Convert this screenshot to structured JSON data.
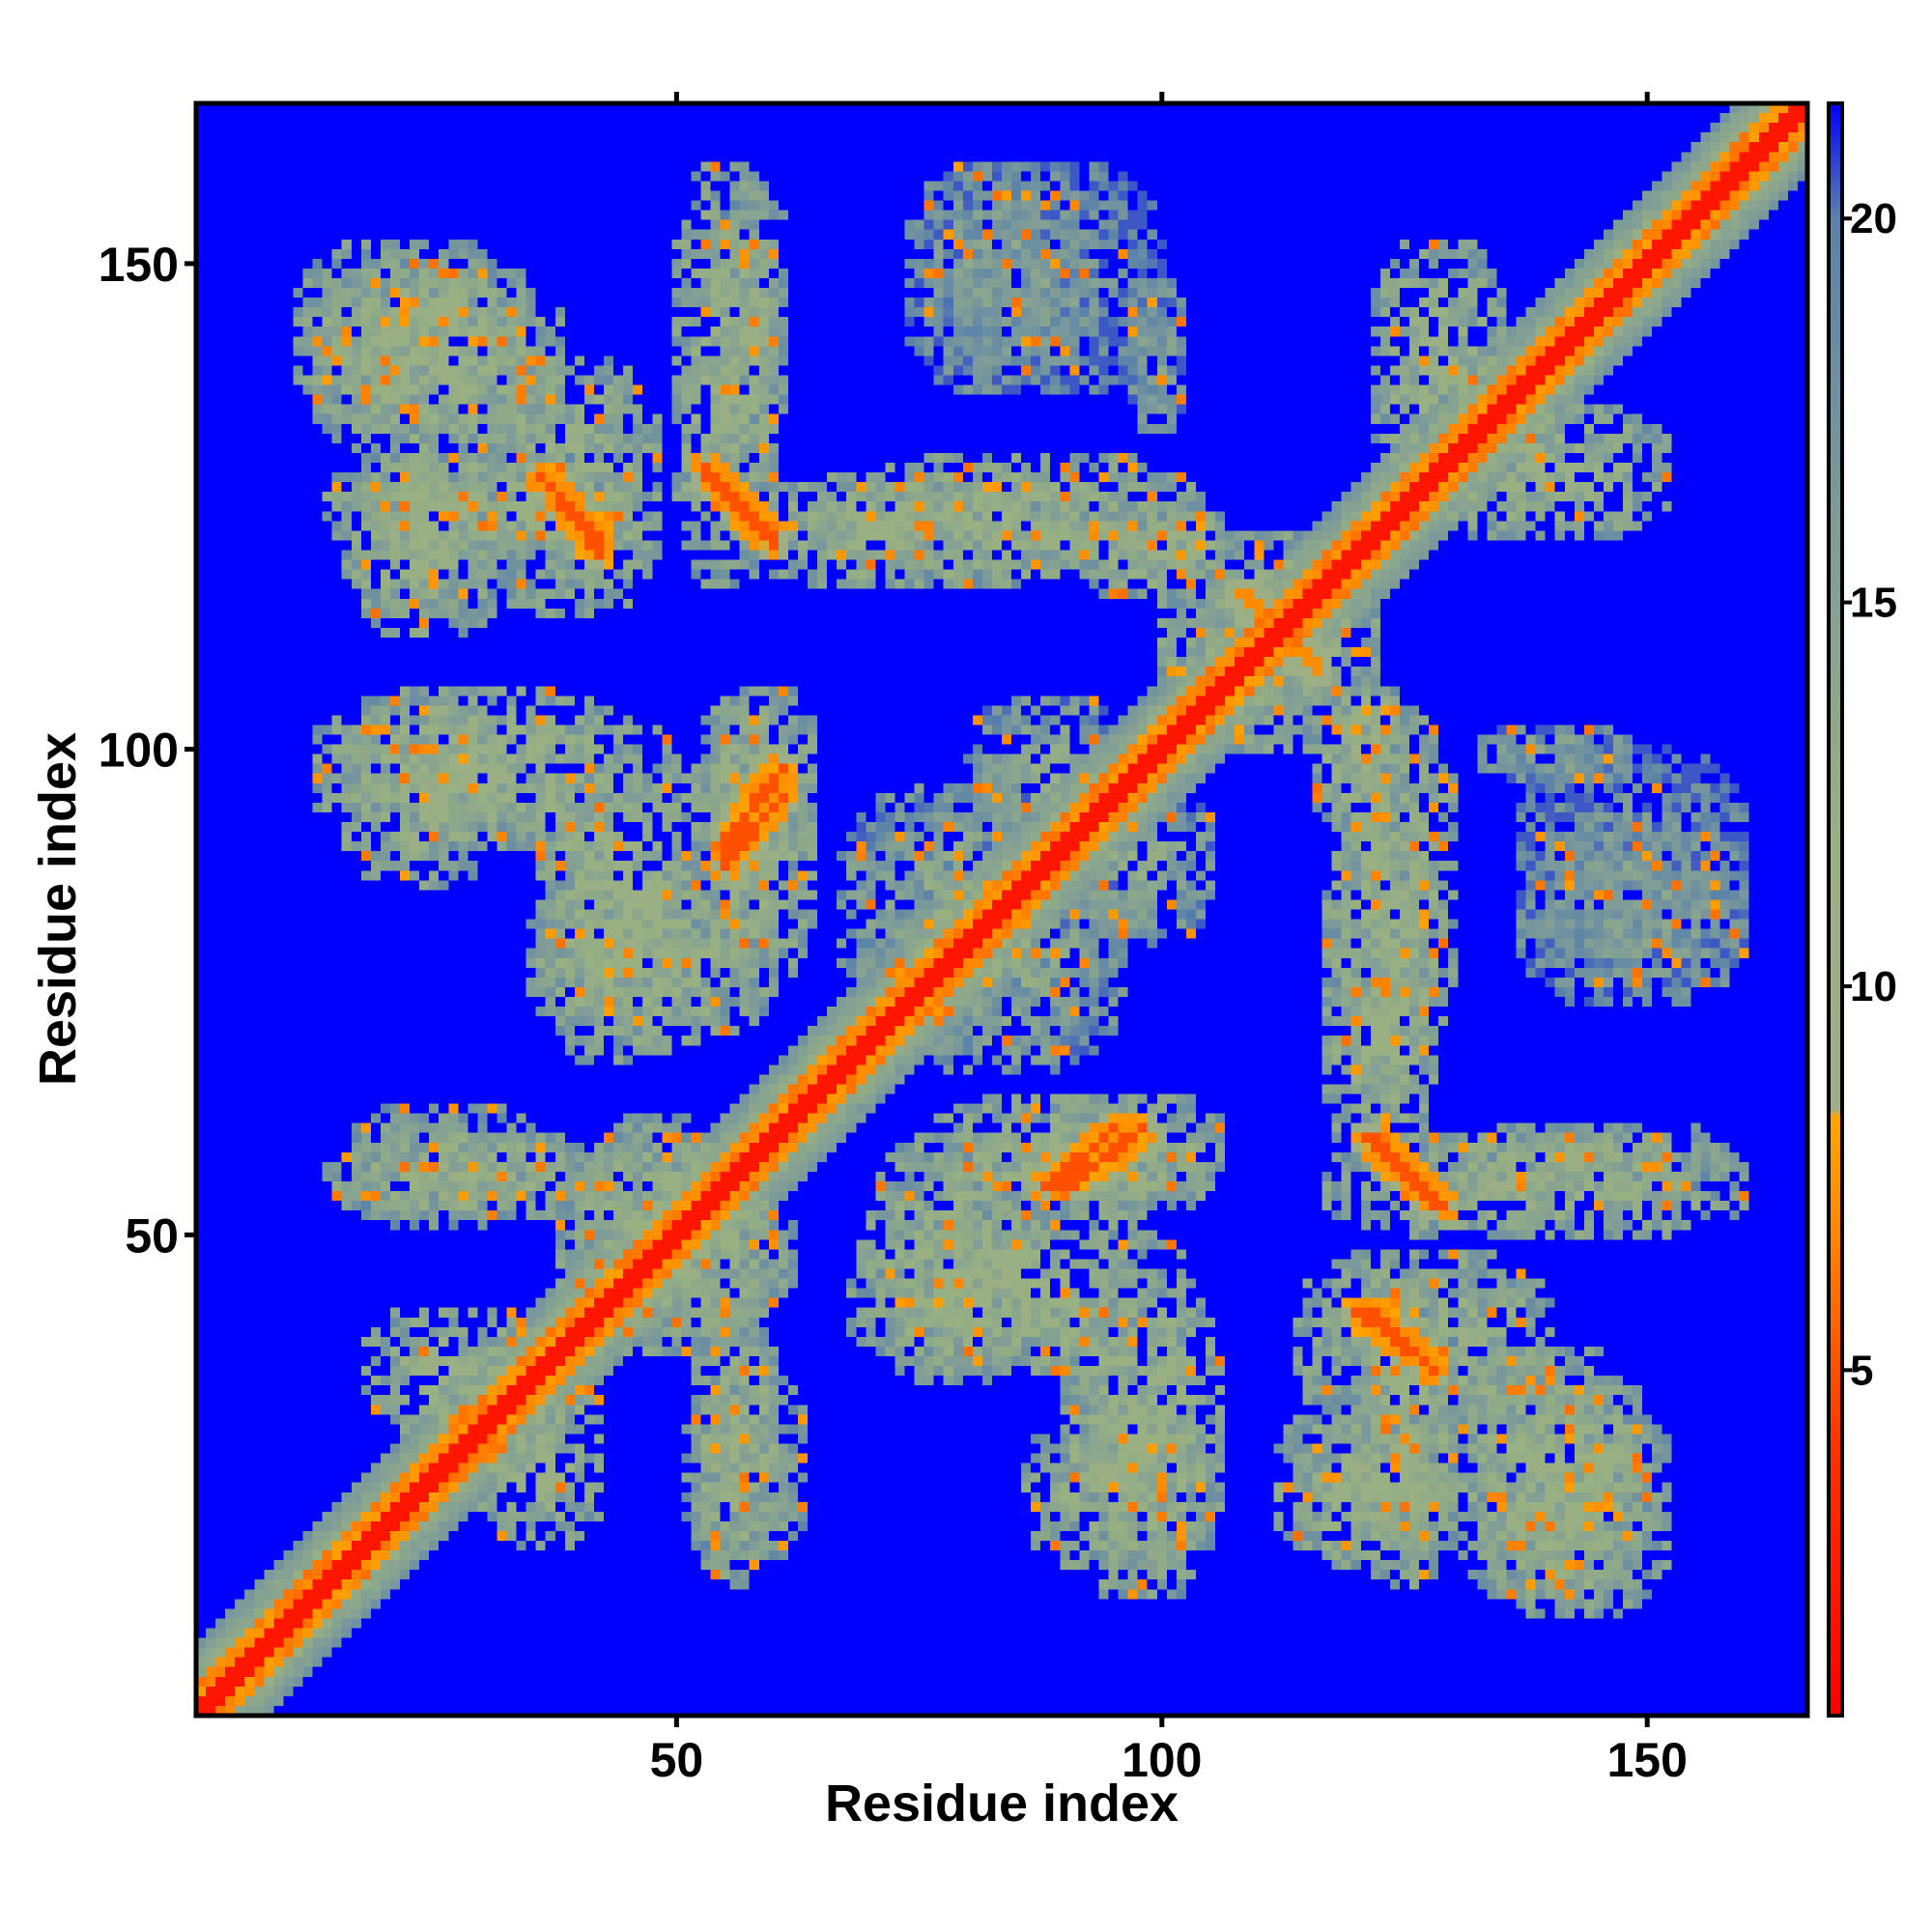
{
  "chart_data": {
    "type": "heatmap",
    "title": "",
    "xlabel": "Residue index",
    "ylabel": "Residue index",
    "n_residues": 166,
    "xlim": [
      1,
      166
    ],
    "ylim": [
      1,
      166
    ],
    "x_ticks": [
      50,
      100,
      150
    ],
    "y_ticks": [
      50,
      100,
      150
    ],
    "colorbar": {
      "ticks": [
        5,
        10,
        15,
        20
      ],
      "range": [
        0.5,
        21.5
      ],
      "stops": [
        {
          "value": 0.5,
          "color": "#ff0000"
        },
        {
          "value": 4.0,
          "color": "#ff3300"
        },
        {
          "value": 7.0,
          "color": "#ff8c00"
        },
        {
          "value": 8.3,
          "color": "#ffa500"
        },
        {
          "value": 8.4,
          "color": "#9fae86"
        },
        {
          "value": 12.0,
          "color": "#98b082"
        },
        {
          "value": 16.0,
          "color": "#7f9c98"
        },
        {
          "value": 20.0,
          "color": "#5a82aa"
        },
        {
          "value": 21.5,
          "color": "#0000ff"
        }
      ]
    },
    "background_value": 21.5,
    "diagonal": {
      "width": 2.5,
      "core_value": 2,
      "shoulder_value": 7,
      "halo_value": 13,
      "halo_width": 7
    },
    "contact_blocks": [
      {
        "x": [
          11,
          34
        ],
        "y": [
          133,
          152
        ],
        "value": 12
      },
      {
        "x": [
          55,
          61
        ],
        "y": [
          130,
          158
        ],
        "value": 13
      },
      {
        "x": [
          74,
          93
        ],
        "y": [
          137,
          160
        ],
        "value": 15
      },
      {
        "x": [
          97,
          102
        ],
        "y": [
          133,
          148
        ],
        "value": 15
      },
      {
        "x": [
          122,
          135
        ],
        "y": [
          127,
          152
        ],
        "value": 12
      },
      {
        "x": [
          14,
          45
        ],
        "y": [
          120,
          130
        ],
        "value": 12
      },
      {
        "x": [
          56,
          92
        ],
        "y": [
          117,
          128
        ],
        "value": 12
      },
      {
        "x": [
          92,
          108
        ],
        "y": [
          116,
          124
        ],
        "value": 12
      },
      {
        "x": [
          13,
          46
        ],
        "y": [
          90,
          106
        ],
        "value": 12
      },
      {
        "x": [
          53,
          64
        ],
        "y": [
          88,
          106
        ],
        "value": 12
      },
      {
        "x": [
          35,
          60
        ],
        "y": [
          70,
          88
        ],
        "value": 12
      },
      {
        "x": [
          67,
          90
        ],
        "y": [
          72,
          96
        ],
        "value": 14
      },
      {
        "x": [
          90,
          105
        ],
        "y": [
          80,
          96
        ],
        "value": 14
      },
      {
        "x": [
          118,
          130
        ],
        "y": [
          68,
          104
        ],
        "value": 12
      },
      {
        "x": [
          137,
          160
        ],
        "y": [
          75,
          100
        ],
        "value": 16
      },
      {
        "x": [
          14,
          42
        ],
        "y": [
          52,
          60
        ],
        "value": 12
      },
      {
        "x": [
          76,
          103
        ],
        "y": [
          52,
          64
        ],
        "value": 12
      },
      {
        "x": [
          117,
          160
        ],
        "y": [
          50,
          60
        ],
        "value": 12
      },
      {
        "x": [
          38,
          62
        ],
        "y": [
          40,
          60
        ],
        "value": 12
      },
      {
        "x": [
          68,
          102
        ],
        "y": [
          36,
          52
        ],
        "value": 12
      },
      {
        "x": [
          114,
          140
        ],
        "y": [
          30,
          48
        ],
        "value": 12
      },
      {
        "x": [
          18,
          36
        ],
        "y": [
          30,
          42
        ],
        "value": 12
      },
      {
        "x": [
          51,
          63
        ],
        "y": [
          16,
          36
        ],
        "value": 13
      },
      {
        "x": [
          86,
          105
        ],
        "y": [
          16,
          32
        ],
        "value": 12
      },
      {
        "x": [
          112,
          130
        ],
        "y": [
          16,
          32
        ],
        "value": 12
      },
      {
        "x": [
          130,
          150
        ],
        "y": [
          12,
          38
        ],
        "value": 12
      },
      {
        "x": [
          100,
          122
        ],
        "y": [
          105,
          118
        ],
        "value": 12
      }
    ],
    "contact_lines": [
      {
        "from": [
          36,
          128
        ],
        "to": [
          42,
          120
        ],
        "value": 6
      },
      {
        "from": [
          53,
          129
        ],
        "to": [
          59,
          122
        ],
        "value": 6
      },
      {
        "from": [
          55,
          90
        ],
        "to": [
          61,
          98
        ],
        "value": 6
      },
      {
        "from": [
          88,
          55
        ],
        "to": [
          95,
          61
        ],
        "value": 6
      },
      {
        "from": [
          121,
          60
        ],
        "to": [
          128,
          53
        ],
        "value": 6
      },
      {
        "from": [
          121,
          42
        ],
        "to": [
          128,
          36
        ],
        "value": 6
      },
      {
        "from": [
          108,
          116
        ],
        "to": [
          116,
          108
        ],
        "value": 8
      }
    ]
  }
}
